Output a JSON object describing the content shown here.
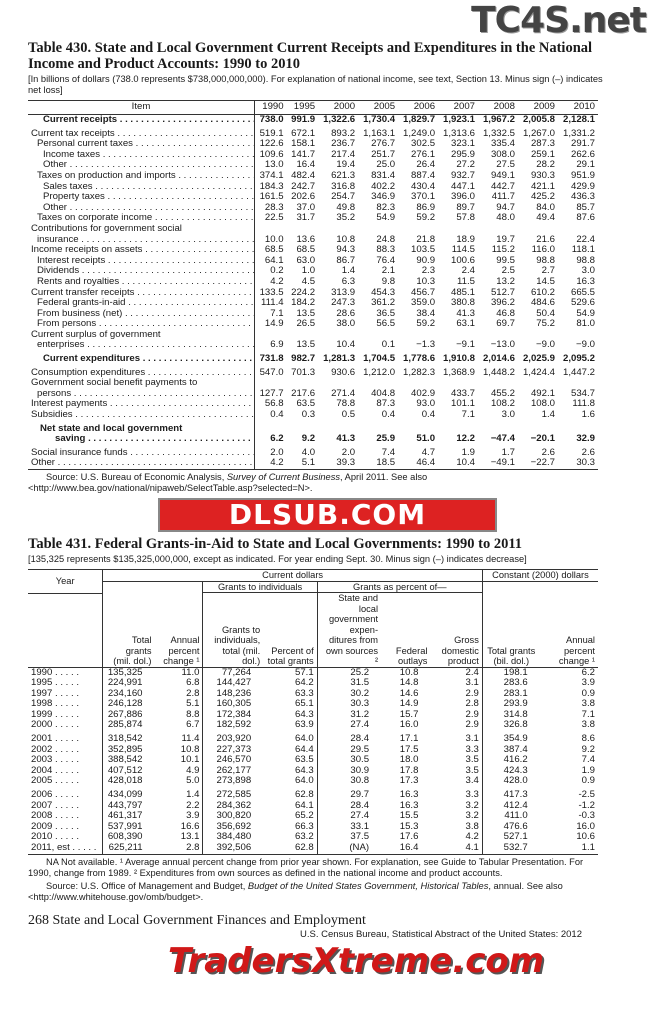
{
  "watermarks": {
    "top": "TC4S.net",
    "middle": "DLSUB.COM",
    "bottom": "TradersXtreme.com"
  },
  "t430": {
    "title": "Table 430. State and Local Government Current Receipts and Expenditures in the National Income and Product Accounts: 1990 to 2010",
    "headnote": "[In billions of dollars (738.0 represents $738,000,000,000). For explanation of national income, see text, Section 13. Minus sign (–) indicates net loss]",
    "columns": [
      "Item",
      "1990",
      "1995",
      "2000",
      "2005",
      "2006",
      "2007",
      "2008",
      "2009",
      "2010"
    ],
    "rows": [
      {
        "label": "Current receipts",
        "bold": true,
        "indent": 2,
        "values": [
          "738.0",
          "991.9",
          "1,322.6",
          "1,730.4",
          "1,829.7",
          "1,923.1",
          "1,967.2",
          "2,005.8",
          "2,128.1"
        ]
      },
      {
        "label": "Current tax receipts",
        "gap": true,
        "indent": 0,
        "values": [
          "519.1",
          "672.1",
          "893.2",
          "1,163.1",
          "1,249.0",
          "1,313.6",
          "1,332.5",
          "1,267.0",
          "1,331.2"
        ]
      },
      {
        "label": "Personal current taxes",
        "indent": 1,
        "values": [
          "122.6",
          "158.1",
          "236.7",
          "276.7",
          "302.5",
          "323.1",
          "335.4",
          "287.3",
          "291.7"
        ]
      },
      {
        "label": "Income taxes",
        "indent": 2,
        "values": [
          "109.6",
          "141.7",
          "217.4",
          "251.7",
          "276.1",
          "295.9",
          "308.0",
          "259.1",
          "262.6"
        ]
      },
      {
        "label": "Other",
        "indent": 2,
        "values": [
          "13.0",
          "16.4",
          "19.4",
          "25.0",
          "26.4",
          "27.2",
          "27.5",
          "28.2",
          "29.1"
        ]
      },
      {
        "label": "Taxes on production and imports",
        "indent": 1,
        "values": [
          "374.1",
          "482.4",
          "621.3",
          "831.4",
          "887.4",
          "932.7",
          "949.1",
          "930.3",
          "951.9"
        ]
      },
      {
        "label": "Sales taxes",
        "indent": 2,
        "values": [
          "184.3",
          "242.7",
          "316.8",
          "402.2",
          "430.4",
          "447.1",
          "442.7",
          "421.1",
          "429.9"
        ]
      },
      {
        "label": "Property taxes",
        "indent": 2,
        "values": [
          "161.5",
          "202.6",
          "254.7",
          "346.9",
          "370.1",
          "396.0",
          "411.7",
          "425.2",
          "436.3"
        ]
      },
      {
        "label": "Other",
        "indent": 2,
        "values": [
          "28.3",
          "37.0",
          "49.8",
          "82.3",
          "86.9",
          "89.7",
          "94.7",
          "84.0",
          "85.7"
        ]
      },
      {
        "label": "Taxes on corporate income",
        "indent": 1,
        "values": [
          "22.5",
          "31.7",
          "35.2",
          "54.9",
          "59.2",
          "57.8",
          "48.0",
          "49.4",
          "87.6"
        ]
      },
      {
        "label_pre": "Contributions for government social",
        "label": "insurance",
        "indent": 1,
        "values": [
          "10.0",
          "13.6",
          "10.8",
          "24.8",
          "21.8",
          "18.9",
          "19.7",
          "21.6",
          "22.4"
        ]
      },
      {
        "label": "Income receipts on assets",
        "indent": 0,
        "values": [
          "68.5",
          "68.5",
          "94.3",
          "88.3",
          "103.5",
          "114.5",
          "115.2",
          "116.0",
          "118.1"
        ]
      },
      {
        "label": "Interest receipts",
        "indent": 1,
        "values": [
          "64.1",
          "63.0",
          "86.7",
          "76.4",
          "90.9",
          "100.6",
          "99.5",
          "98.8",
          "98.8"
        ]
      },
      {
        "label": "Dividends",
        "indent": 1,
        "values": [
          "0.2",
          "1.0",
          "1.4",
          "2.1",
          "2.3",
          "2.4",
          "2.5",
          "2.7",
          "3.0"
        ]
      },
      {
        "label": "Rents and royalties",
        "indent": 1,
        "values": [
          "4.2",
          "4.5",
          "6.3",
          "9.8",
          "10.3",
          "11.5",
          "13.2",
          "14.5",
          "16.3"
        ]
      },
      {
        "label": "Current transfer receipts",
        "indent": 0,
        "values": [
          "133.5",
          "224.2",
          "313.9",
          "454.3",
          "456.7",
          "485.1",
          "512.7",
          "610.2",
          "665.5"
        ]
      },
      {
        "label": "Federal grants-in-aid",
        "indent": 1,
        "values": [
          "111.4",
          "184.2",
          "247.3",
          "361.2",
          "359.0",
          "380.8",
          "396.2",
          "484.6",
          "529.6"
        ]
      },
      {
        "label": "From business (net)",
        "indent": 1,
        "values": [
          "7.1",
          "13.5",
          "28.6",
          "36.5",
          "38.4",
          "41.3",
          "46.8",
          "50.4",
          "54.9"
        ]
      },
      {
        "label": "From persons",
        "indent": 1,
        "values": [
          "14.9",
          "26.5",
          "38.0",
          "56.5",
          "59.2",
          "63.1",
          "69.7",
          "75.2",
          "81.0"
        ]
      },
      {
        "label_pre": "Current surplus of government",
        "label": "enterprises",
        "indent": 1,
        "values": [
          "6.9",
          "13.5",
          "10.4",
          "0.1",
          "−1.3",
          "−9.1",
          "−13.0",
          "−9.0",
          "−9.0"
        ]
      },
      {
        "label": "Current expenditures",
        "bold": true,
        "gap": true,
        "indent": 2,
        "values": [
          "731.8",
          "982.7",
          "1,281.3",
          "1,704.5",
          "1,778.6",
          "1,910.8",
          "2,014.6",
          "2,025.9",
          "2,095.2"
        ]
      },
      {
        "label": "Consumption expenditures",
        "gap": true,
        "indent": 0,
        "values": [
          "547.0",
          "701.3",
          "930.6",
          "1,212.0",
          "1,282.3",
          "1,368.9",
          "1,448.2",
          "1,424.4",
          "1,447.2"
        ]
      },
      {
        "label_pre": "Government social benefit payments to",
        "label": "persons",
        "indent": 1,
        "values": [
          "127.7",
          "217.6",
          "271.4",
          "404.8",
          "402.9",
          "433.7",
          "455.2",
          "492.1",
          "534.7"
        ]
      },
      {
        "label": "Interest payments",
        "indent": 0,
        "values": [
          "56.8",
          "63.5",
          "78.8",
          "87.3",
          "93.0",
          "101.1",
          "108.2",
          "108.0",
          "111.8"
        ]
      },
      {
        "label": "Subsidies",
        "indent": 0,
        "values": [
          "0.4",
          "0.3",
          "0.5",
          "0.4",
          "0.4",
          "7.1",
          "3.0",
          "1.4",
          "1.6"
        ]
      },
      {
        "label_pre": "Net state and local government",
        "label": "saving",
        "bold": true,
        "gap": true,
        "indent": 4,
        "values": [
          "6.2",
          "9.2",
          "41.3",
          "25.9",
          "51.0",
          "12.2",
          "−47.4",
          "−20.1",
          "32.9"
        ]
      },
      {
        "label": "Social insurance funds",
        "gap": true,
        "indent": 0,
        "values": [
          "2.0",
          "4.0",
          "2.0",
          "7.4",
          "4.7",
          "1.9",
          "1.7",
          "2.6",
          "2.6"
        ]
      },
      {
        "label": "Other",
        "indent": 0,
        "values": [
          "4.2",
          "5.1",
          "39.3",
          "18.5",
          "46.4",
          "10.4",
          "−49.1",
          "−22.7",
          "30.3"
        ]
      }
    ],
    "source_prefix": "Source: U.S. Bureau of Economic Analysis, ",
    "source_italic": "Survey of Current Business",
    "source_suffix": ", April 2011. See also <http://www.bea.gov/national/nipaweb/SelectTable.asp?selected=N>."
  },
  "t431": {
    "title": "Table 431. Federal Grants-in-Aid to State and Local Governments: 1990 to 2011",
    "headnote": "[135,325 represents $135,325,000,000, except as indicated. For year ending Sept. 30. Minus sign (–) indicates decrease]",
    "header": {
      "current": "Current dollars",
      "constant": "Constant (2000) dollars",
      "individuals": "Grants to individuals",
      "percent_of": "Grants as percent of—",
      "year": "Year",
      "cols": [
        "Total grants (mil. dol.)",
        "Annual percent change ¹",
        "Grants to individuals, total (mil. dol.)",
        "Percent of total grants",
        "State and local government expen- ditures from own sources ²",
        "Federal outlays",
        "Gross domestic product",
        "Total grants (bil. dol.)",
        "Annual percent change ¹"
      ]
    },
    "rows": [
      {
        "year": "1990",
        "values": [
          "135,325",
          "11.0",
          "77,264",
          "57.1",
          "25.2",
          "10.8",
          "2.4",
          "198.1",
          "6.2"
        ]
      },
      {
        "year": "1995",
        "values": [
          "224,991",
          "6.8",
          "144,427",
          "64.2",
          "31.5",
          "14.8",
          "3.1",
          "283.6",
          "3.9"
        ]
      },
      {
        "year": "1997",
        "values": [
          "234,160",
          "2.8",
          "148,236",
          "63.3",
          "30.2",
          "14.6",
          "2.9",
          "283.1",
          "0.9"
        ]
      },
      {
        "year": "1998",
        "values": [
          "246,128",
          "5.1",
          "160,305",
          "65.1",
          "30.3",
          "14.9",
          "2.8",
          "293.9",
          "3.8"
        ]
      },
      {
        "year": "1999",
        "values": [
          "267,886",
          "8.8",
          "172,384",
          "64.3",
          "31.2",
          "15.7",
          "2.9",
          "314.8",
          "7.1"
        ]
      },
      {
        "year": "2000",
        "values": [
          "285,874",
          "6.7",
          "182,592",
          "63.9",
          "27.4",
          "16.0",
          "2.9",
          "326.8",
          "3.8"
        ]
      },
      {
        "year": "2001",
        "gap": true,
        "values": [
          "318,542",
          "11.4",
          "203,920",
          "64.0",
          "28.4",
          "17.1",
          "3.1",
          "354.9",
          "8.6"
        ]
      },
      {
        "year": "2002",
        "values": [
          "352,895",
          "10.8",
          "227,373",
          "64.4",
          "29.5",
          "17.5",
          "3.3",
          "387.4",
          "9.2"
        ]
      },
      {
        "year": "2003",
        "values": [
          "388,542",
          "10.1",
          "246,570",
          "63.5",
          "30.5",
          "18.0",
          "3.5",
          "416.2",
          "7.4"
        ]
      },
      {
        "year": "2004",
        "values": [
          "407,512",
          "4.9",
          "262,177",
          "64.3",
          "30.9",
          "17.8",
          "3.5",
          "424.3",
          "1.9"
        ]
      },
      {
        "year": "2005",
        "values": [
          "428,018",
          "5.0",
          "273,898",
          "64.0",
          "30.8",
          "17.3",
          "3.4",
          "428.0",
          "0.9"
        ]
      },
      {
        "year": "2006",
        "gap": true,
        "values": [
          "434,099",
          "1.4",
          "272,585",
          "62.8",
          "29.7",
          "16.3",
          "3.3",
          "417.3",
          "-2.5"
        ]
      },
      {
        "year": "2007",
        "values": [
          "443,797",
          "2.2",
          "284,362",
          "64.1",
          "28.4",
          "16.3",
          "3.2",
          "412.4",
          "-1.2"
        ]
      },
      {
        "year": "2008",
        "values": [
          "461,317",
          "3.9",
          "300,820",
          "65.2",
          "27.4",
          "15.5",
          "3.2",
          "411.0",
          "-0.3"
        ]
      },
      {
        "year": "2009",
        "values": [
          "537,991",
          "16.6",
          "356,692",
          "66.3",
          "33.1",
          "15.3",
          "3.8",
          "476.6",
          "16.0"
        ]
      },
      {
        "year": "2010",
        "values": [
          "608,390",
          "13.1",
          "384,480",
          "63.2",
          "37.5",
          "17.6",
          "4.2",
          "527.1",
          "10.6"
        ]
      },
      {
        "year": "2011, est",
        "values": [
          "625,211",
          "2.8",
          "392,506",
          "62.8",
          "(NA)",
          "16.4",
          "4.1",
          "532.7",
          "1.1"
        ]
      }
    ],
    "footnote": "NA Not available. ¹ Average annual percent change from prior year shown. For explanation, see Guide to Tabular Presentation. For 1990, change from 1989. ² Expenditures from own sources as defined in the national income and product accounts.",
    "source_prefix": "Source: U.S. Office of Management and Budget, ",
    "source_italic": "Budget of the United States Government, Historical Tables",
    "source_suffix": ", annual. See also <http://www.whitehouse.gov/omb/budget>."
  },
  "footer": {
    "page": "268  State and Local Government Finances and Employment",
    "publication": "U.S. Census Bureau, Statistical Abstract of the United States: 2012"
  }
}
